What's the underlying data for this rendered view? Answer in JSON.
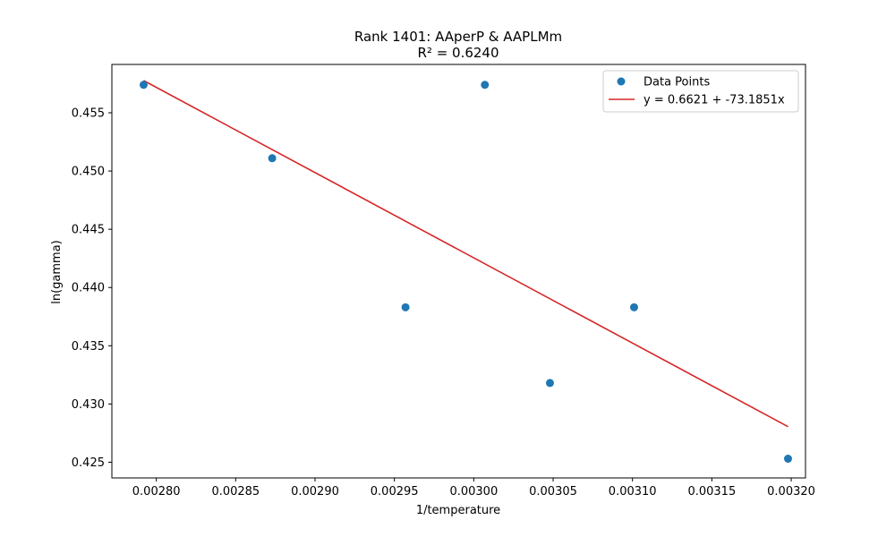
{
  "chart_data": {
    "type": "scatter",
    "title": "Rank 1401: AAperP & AAPLMm",
    "subtitle": "R² = 0.6240",
    "xlabel": "1/temperature",
    "ylabel": "ln(gamma)",
    "xlim": [
      0.002772,
      0.003209
    ],
    "ylim": [
      0.42365,
      0.45915
    ],
    "xticks": [
      0.0028,
      0.00285,
      0.0029,
      0.00295,
      0.003,
      0.00305,
      0.0031,
      0.00315,
      0.0032
    ],
    "xtick_labels": [
      "0.00280",
      "0.00285",
      "0.00290",
      "0.00295",
      "0.00300",
      "0.00305",
      "0.00310",
      "0.00315",
      "0.00320"
    ],
    "yticks": [
      0.425,
      0.43,
      0.435,
      0.44,
      0.445,
      0.45,
      0.455
    ],
    "ytick_labels": [
      "0.425",
      "0.430",
      "0.435",
      "0.440",
      "0.445",
      "0.450",
      "0.455"
    ],
    "grid": false,
    "legend_position": "top-right",
    "series": [
      {
        "name": "Data Points",
        "kind": "scatter",
        "color": "#1f77b4",
        "points": [
          {
            "x": 0.002792,
            "y": 0.4574
          },
          {
            "x": 0.002873,
            "y": 0.4511
          },
          {
            "x": 0.002957,
            "y": 0.4383
          },
          {
            "x": 0.003007,
            "y": 0.4574
          },
          {
            "x": 0.003048,
            "y": 0.4318
          },
          {
            "x": 0.003101,
            "y": 0.4383
          },
          {
            "x": 0.003198,
            "y": 0.4253
          }
        ]
      },
      {
        "name": "y = 0.6621 + -73.1851x",
        "kind": "line",
        "color": "#d62728",
        "intercept": 0.6621,
        "slope": -73.1851,
        "x_range": [
          0.002792,
          0.003198
        ]
      }
    ]
  }
}
